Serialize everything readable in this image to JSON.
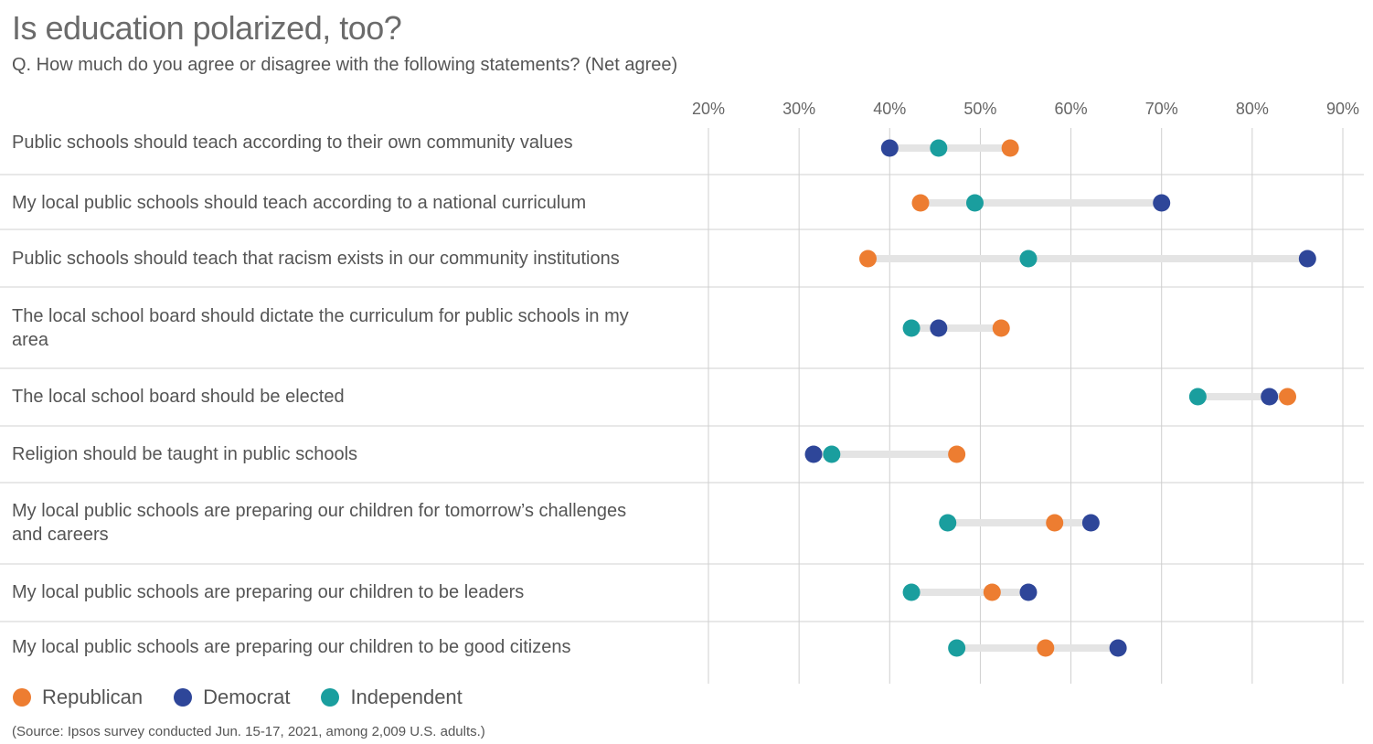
{
  "chart_data": {
    "type": "dot",
    "title": "Is education polarized, too?",
    "subtitle": "Q. How much do you agree or disagree with the following statements? (Net agree)",
    "xlim": [
      20,
      90
    ],
    "ticks": [
      20,
      30,
      40,
      50,
      60,
      70,
      80,
      90
    ],
    "tick_labels": [
      "20%",
      "30%",
      "40%",
      "50%",
      "60%",
      "70%",
      "80%",
      "90%"
    ],
    "grid": true,
    "legend_position": "bottom-left",
    "series": [
      {
        "name": "Republican",
        "color": "#ED7D31"
      },
      {
        "name": "Democrat",
        "color": "#2E4699"
      },
      {
        "name": "Independent",
        "color": "#1A9E9E"
      }
    ],
    "categories": [
      {
        "label": "Public schools should teach according to their own community values",
        "values": {
          "Republican": 53.3,
          "Democrat": 40,
          "Independent": 45.4
        }
      },
      {
        "label": "My local public schools should teach according to a national curriculum",
        "values": {
          "Republican": 43.4,
          "Democrat": 70,
          "Independent": 49.4
        }
      },
      {
        "label": "Public schools should teach that racism exists in our community institutions",
        "values": {
          "Republican": 37.6,
          "Democrat": 86.1,
          "Independent": 55.3
        }
      },
      {
        "label": "The local school board should dictate the curriculum for public schools in my area",
        "values": {
          "Republican": 52.3,
          "Democrat": 45.4,
          "Independent": 42.4
        }
      },
      {
        "label": "The local school board should be elected",
        "values": {
          "Republican": 83.9,
          "Democrat": 81.9,
          "Independent": 74
        }
      },
      {
        "label": "Religion should be taught in public schools",
        "values": {
          "Republican": 47.4,
          "Democrat": 31.6,
          "Independent": 33.6
        }
      },
      {
        "label": "My local public schools are preparing our children for tomorrow’s challenges and careers",
        "values": {
          "Republican": 58.2,
          "Democrat": 62.2,
          "Independent": 46.4
        }
      },
      {
        "label": "My local public schools are preparing our children to be leaders",
        "values": {
          "Republican": 51.3,
          "Democrat": 55.3,
          "Independent": 42.4
        }
      },
      {
        "label": "My local public schools are preparing our children to be good citizens",
        "values": {
          "Republican": 57.2,
          "Democrat": 65.2,
          "Independent": 47.4
        }
      }
    ],
    "source": "(Source: Ipsos survey conducted Jun. 15-17, 2021, among 2,009 U.S. adults.)"
  }
}
